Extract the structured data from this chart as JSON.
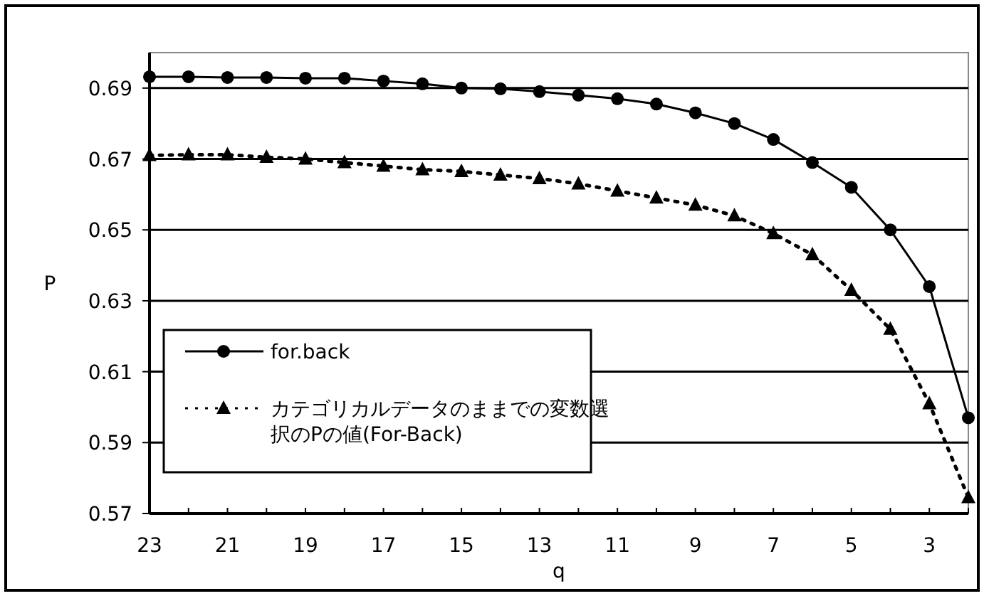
{
  "chart_data": {
    "type": "line",
    "xlabel": "q",
    "ylabel": "P",
    "categories": [
      "23",
      null,
      "21",
      null,
      "19",
      null,
      "17",
      null,
      "15",
      null,
      "13",
      null,
      "11",
      null,
      "9",
      null,
      "7",
      null,
      "5",
      null,
      "3",
      null
    ],
    "series": [
      {
        "name": "for.back",
        "color": "#000000",
        "marker": "circle",
        "line_style": "solid",
        "values": [
          0.6932,
          0.6932,
          0.693,
          0.693,
          0.6928,
          0.6928,
          0.692,
          0.6912,
          0.69,
          0.6898,
          0.689,
          0.688,
          0.687,
          0.6855,
          0.683,
          0.68,
          0.6755,
          0.669,
          0.662,
          0.65,
          0.634,
          0.597
        ]
      },
      {
        "name": "カテゴリカルデータのままでの変数選択のPの値(For-Back)",
        "color": "#000000",
        "marker": "triangle",
        "line_style": "dotted",
        "values": [
          0.671,
          0.6712,
          0.6712,
          0.6705,
          0.67,
          0.669,
          0.668,
          0.667,
          0.6665,
          0.6655,
          0.6645,
          0.663,
          0.661,
          0.659,
          0.657,
          0.654,
          0.649,
          0.643,
          0.633,
          0.622,
          0.601,
          0.5745
        ]
      }
    ],
    "ylim": [
      0.57,
      0.7
    ],
    "yticks": [
      0.57,
      0.59,
      0.61,
      0.63,
      0.65,
      0.67,
      0.69
    ],
    "grid": "y",
    "legend": "bottom left"
  }
}
